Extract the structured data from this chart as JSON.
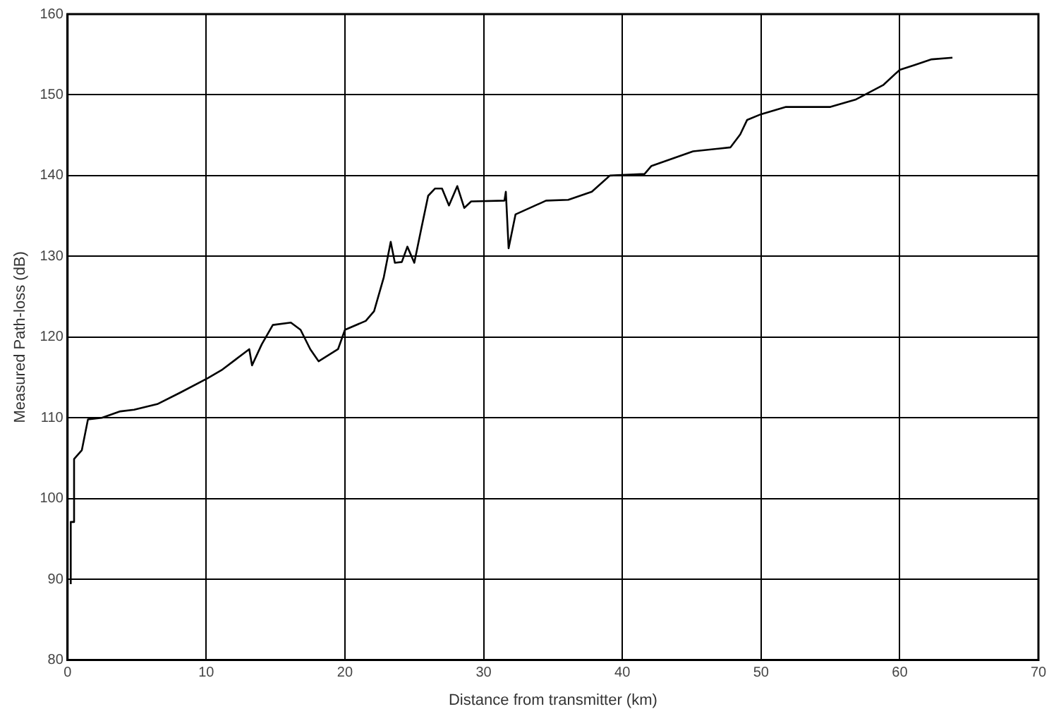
{
  "chart_data": {
    "type": "line",
    "xlabel": "Distance from transmitter (km)",
    "ylabel": "Measured Path-loss (dB)",
    "xlim": [
      0,
      70
    ],
    "xticks": [
      0,
      10,
      20,
      30,
      40,
      50,
      60,
      70
    ],
    "ylim": [
      80,
      160
    ],
    "yticks": [
      80,
      90,
      100,
      110,
      120,
      130,
      140,
      150,
      160
    ],
    "grid": true,
    "line_style": "solid",
    "marker": "none",
    "series": [
      {
        "color": "#000000",
        "x": [
          0.23,
          0.23,
          0.47,
          0.47,
          1.03,
          1.47,
          2.47,
          3.8,
          4.8,
          6.47,
          8.1,
          10.1,
          11.1,
          12.1,
          13.1,
          13.3,
          14.0,
          14.8,
          16.1,
          16.8,
          17.5,
          18.1,
          19.5,
          20.0,
          21.5,
          22.1,
          22.8,
          23.3,
          23.6,
          24.1,
          24.5,
          25.0,
          25.5,
          26.0,
          26.5,
          27.0,
          27.5,
          28.1,
          28.6,
          29.1,
          31.5,
          31.6,
          31.8,
          32.3,
          34.5,
          36.1,
          37.8,
          39.1,
          41.6,
          42.1,
          45.1,
          47.8,
          48.5,
          49.0,
          50.0,
          51.8,
          55.0,
          56.8,
          58.8,
          60.0,
          61.1,
          62.3,
          63.8
        ],
        "values": [
          89.4,
          97.1,
          97.1,
          104.9,
          106,
          109.8,
          110,
          110.8,
          111,
          111.7,
          113.1,
          114.9,
          115.9,
          117.2,
          118.5,
          116.5,
          119.1,
          121.5,
          121.8,
          120.9,
          118.5,
          117,
          118.5,
          120.9,
          122,
          123.2,
          127.4,
          131.8,
          129.2,
          129.3,
          131.2,
          129.2,
          133.4,
          137.5,
          138.4,
          138.4,
          136.3,
          138.7,
          136,
          136.8,
          136.9,
          138,
          131,
          135.2,
          136.9,
          137,
          138,
          140,
          140.2,
          141.2,
          143,
          143.5,
          145.1,
          146.9,
          147.6,
          148.5,
          148.5,
          149.4,
          151.2,
          153.1,
          153.7,
          154.4,
          154.6
        ]
      }
    ]
  }
}
